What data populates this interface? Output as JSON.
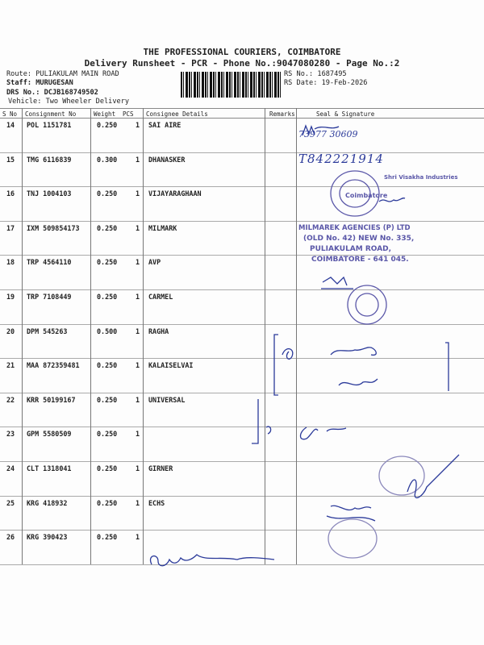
{
  "header": {
    "company": "THE PROFESSIONAL COURIERS, COIMBATORE",
    "subtitle": "Delivery Runsheet - PCR - Phone No.:9047080280 - Page No.:2",
    "route": "Route: PULIAKULAM MAIN ROAD",
    "staff": "Staff: MURUGESAN",
    "drs_no": "DRS No.: DCJB168749502",
    "vehicle": "Vehicle: Two Wheeler Delivery",
    "rs_no": "RS No.: 1687495",
    "rs_date": "RS Date: 19-Feb-2026"
  },
  "table": {
    "columns": [
      "S No",
      "Consignment No",
      "Weight",
      "PCS",
      "Consignee Details",
      "Remarks",
      "Seal & Signature"
    ],
    "rows": [
      {
        "sno": "14",
        "cn": "POL 1151781",
        "weight": "0.250",
        "pcs": "1",
        "consignee": "SAI  AIRE"
      },
      {
        "sno": "15",
        "cn": "TMG 6116839",
        "weight": "0.300",
        "pcs": "1",
        "consignee": "DHANASKER"
      },
      {
        "sno": "16",
        "cn": "TNJ 1004103",
        "weight": "0.250",
        "pcs": "1",
        "consignee": "VIJAYARAGHAAN"
      },
      {
        "sno": "17",
        "cn": "IXM 509854173",
        "weight": "0.250",
        "pcs": "1",
        "consignee": "MILMARK"
      },
      {
        "sno": "18",
        "cn": "TRP 4564110",
        "weight": "0.250",
        "pcs": "1",
        "consignee": "AVP"
      },
      {
        "sno": "19",
        "cn": "TRP 7108449",
        "weight": "0.250",
        "pcs": "1",
        "consignee": "CARMEL"
      },
      {
        "sno": "20",
        "cn": "DPM 545263",
        "weight": "0.500",
        "pcs": "1",
        "consignee": "RAGHA"
      },
      {
        "sno": "21",
        "cn": "MAA 872359481",
        "weight": "0.250",
        "pcs": "1",
        "consignee": "KALAISELVAI"
      },
      {
        "sno": "22",
        "cn": "KRR 50199167",
        "weight": "0.250",
        "pcs": "1",
        "consignee": "UNIVERSAL"
      },
      {
        "sno": "23",
        "cn": "GPM 5580509",
        "weight": "0.250",
        "pcs": "1",
        "consignee": ""
      },
      {
        "sno": "24",
        "cn": "CLT 1318041",
        "weight": "0.250",
        "pcs": "1",
        "consignee": "GIRNER"
      },
      {
        "sno": "25",
        "cn": "KRG 418932",
        "weight": "0.250",
        "pcs": "1",
        "consignee": "ECHS"
      },
      {
        "sno": "26",
        "cn": "KRG 390423",
        "weight": "0.250",
        "pcs": "1",
        "consignee": ""
      }
    ]
  },
  "stamps": {
    "visakha": "Shri Visakha Industries",
    "visakha_city": "Coimbatore",
    "milmarek_1": "MILMAREK AGENCIES (P) LTD",
    "milmarek_2": "(OLD No. 42) NEW No. 335,",
    "milmarek_3": "PULIAKULAM ROAD,",
    "milmarek_4": "COIMBATORE - 641 045."
  },
  "handwriting": {
    "row14_phone": "73977 30609",
    "row15_phone": "T842221914"
  },
  "colors": {
    "ink": "#2b3a9a",
    "stamp": "#5a57a8"
  }
}
